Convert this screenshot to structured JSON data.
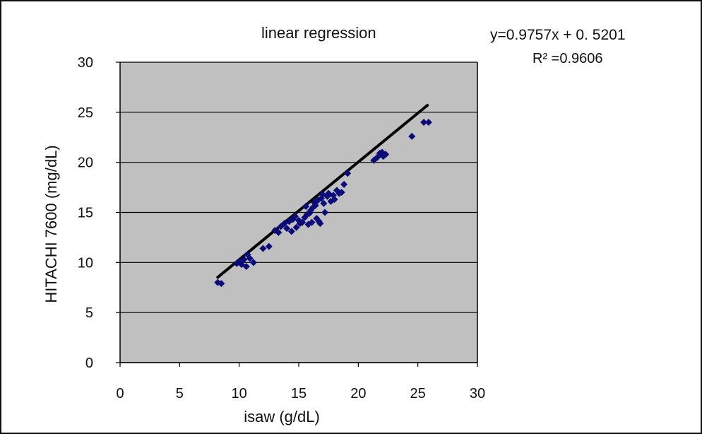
{
  "chart_data": {
    "type": "scatter",
    "title": "linear regression",
    "xlabel": "isaw (g/dL)",
    "ylabel": "HITACHI 7600 (mg/dL)",
    "xlim": [
      0,
      30
    ],
    "ylim": [
      0,
      30
    ],
    "xticks": [
      "0",
      "5",
      "10",
      "15",
      "20",
      "25",
      "30"
    ],
    "yticks": [
      "0",
      "5",
      "10",
      "15",
      "20",
      "25",
      "30"
    ],
    "grid": "horizontal",
    "equation": "y=0.9757x + 0. 5201",
    "r_squared": "R² =0.9606",
    "trendline": {
      "slope": 0.9757,
      "intercept": 0.5201,
      "x_range": [
        8.2,
        25.8
      ]
    },
    "colors": {
      "plot_bg": "#c0c0c0",
      "points": "#0a0a7a",
      "trendline": "#000000",
      "grid": "#000000"
    },
    "series": [
      {
        "points": [
          [
            8.2,
            8.0
          ],
          [
            8.5,
            7.9
          ],
          [
            9.8,
            9.9
          ],
          [
            10.0,
            10.1
          ],
          [
            10.2,
            9.8
          ],
          [
            10.4,
            10.3
          ],
          [
            10.6,
            9.6
          ],
          [
            10.7,
            10.8
          ],
          [
            10.9,
            10.4
          ],
          [
            11.2,
            10.0
          ],
          [
            12.0,
            11.4
          ],
          [
            12.5,
            11.6
          ],
          [
            13.0,
            13.2
          ],
          [
            13.3,
            13.0
          ],
          [
            13.5,
            13.6
          ],
          [
            13.8,
            13.9
          ],
          [
            14.0,
            13.4
          ],
          [
            14.2,
            14.1
          ],
          [
            14.4,
            13.1
          ],
          [
            14.5,
            14.3
          ],
          [
            14.7,
            14.6
          ],
          [
            14.8,
            13.5
          ],
          [
            15.0,
            14.2
          ],
          [
            15.1,
            13.9
          ],
          [
            15.3,
            14.0
          ],
          [
            15.5,
            14.5
          ],
          [
            15.6,
            15.6
          ],
          [
            15.7,
            14.8
          ],
          [
            15.8,
            13.8
          ],
          [
            15.9,
            14.9
          ],
          [
            16.0,
            15.2
          ],
          [
            16.1,
            14.0
          ],
          [
            16.2,
            15.5
          ],
          [
            16.3,
            16.0
          ],
          [
            16.4,
            15.7
          ],
          [
            16.5,
            14.4
          ],
          [
            16.6,
            16.2
          ],
          [
            16.7,
            14.1
          ],
          [
            16.8,
            13.9
          ],
          [
            16.9,
            16.4
          ],
          [
            17.0,
            16.8
          ],
          [
            17.1,
            15.9
          ],
          [
            17.2,
            15.0
          ],
          [
            17.4,
            16.6
          ],
          [
            17.5,
            16.9
          ],
          [
            17.7,
            16.1
          ],
          [
            17.9,
            16.7
          ],
          [
            18.0,
            16.3
          ],
          [
            18.2,
            17.2
          ],
          [
            18.4,
            16.9
          ],
          [
            18.6,
            17.0
          ],
          [
            18.8,
            17.8
          ],
          [
            19.1,
            18.9
          ],
          [
            21.3,
            20.2
          ],
          [
            21.6,
            20.5
          ],
          [
            21.8,
            20.9
          ],
          [
            22.0,
            21.0
          ],
          [
            22.1,
            20.6
          ],
          [
            22.3,
            20.8
          ],
          [
            24.5,
            22.6
          ],
          [
            25.5,
            24.0
          ],
          [
            25.9,
            24.0
          ]
        ]
      }
    ]
  }
}
